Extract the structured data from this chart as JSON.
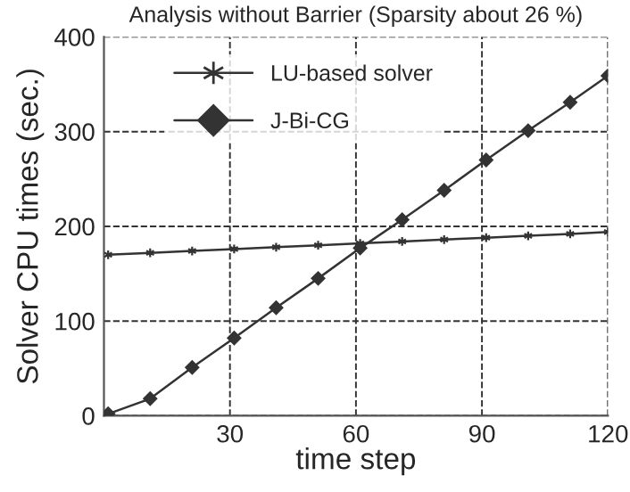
{
  "chart_data": {
    "type": "line",
    "title": "Analysis without Barrier (Sparsity about 26 %)",
    "xlabel": "time step",
    "ylabel": "Solver CPU times (sec.)",
    "series": [
      {
        "name": "LU-based solver",
        "color": "#333333",
        "marker": "cross",
        "x": [
          1,
          11,
          21,
          31,
          41,
          51,
          61,
          71,
          81,
          91,
          101,
          111,
          120
        ],
        "values": [
          170,
          172,
          174,
          176,
          178,
          180,
          182,
          184,
          186,
          188,
          190,
          192,
          194
        ]
      },
      {
        "name": "J-Bi-CG",
        "color": "#333333",
        "marker": "diamond",
        "x": [
          1,
          11,
          21,
          31,
          41,
          51,
          61,
          71,
          81,
          91,
          101,
          111,
          120
        ],
        "values": [
          2,
          18,
          51,
          82,
          114,
          145,
          177,
          207,
          238,
          270,
          301,
          331,
          359
        ]
      }
    ],
    "xlim": [
      0,
      120
    ],
    "xticks": [
      30,
      60,
      90,
      120
    ],
    "ylim": [
      0,
      400
    ],
    "yticks": [
      0,
      100,
      200,
      300,
      400
    ],
    "grid": true,
    "legend": "top left",
    "line_style": "solid"
  }
}
